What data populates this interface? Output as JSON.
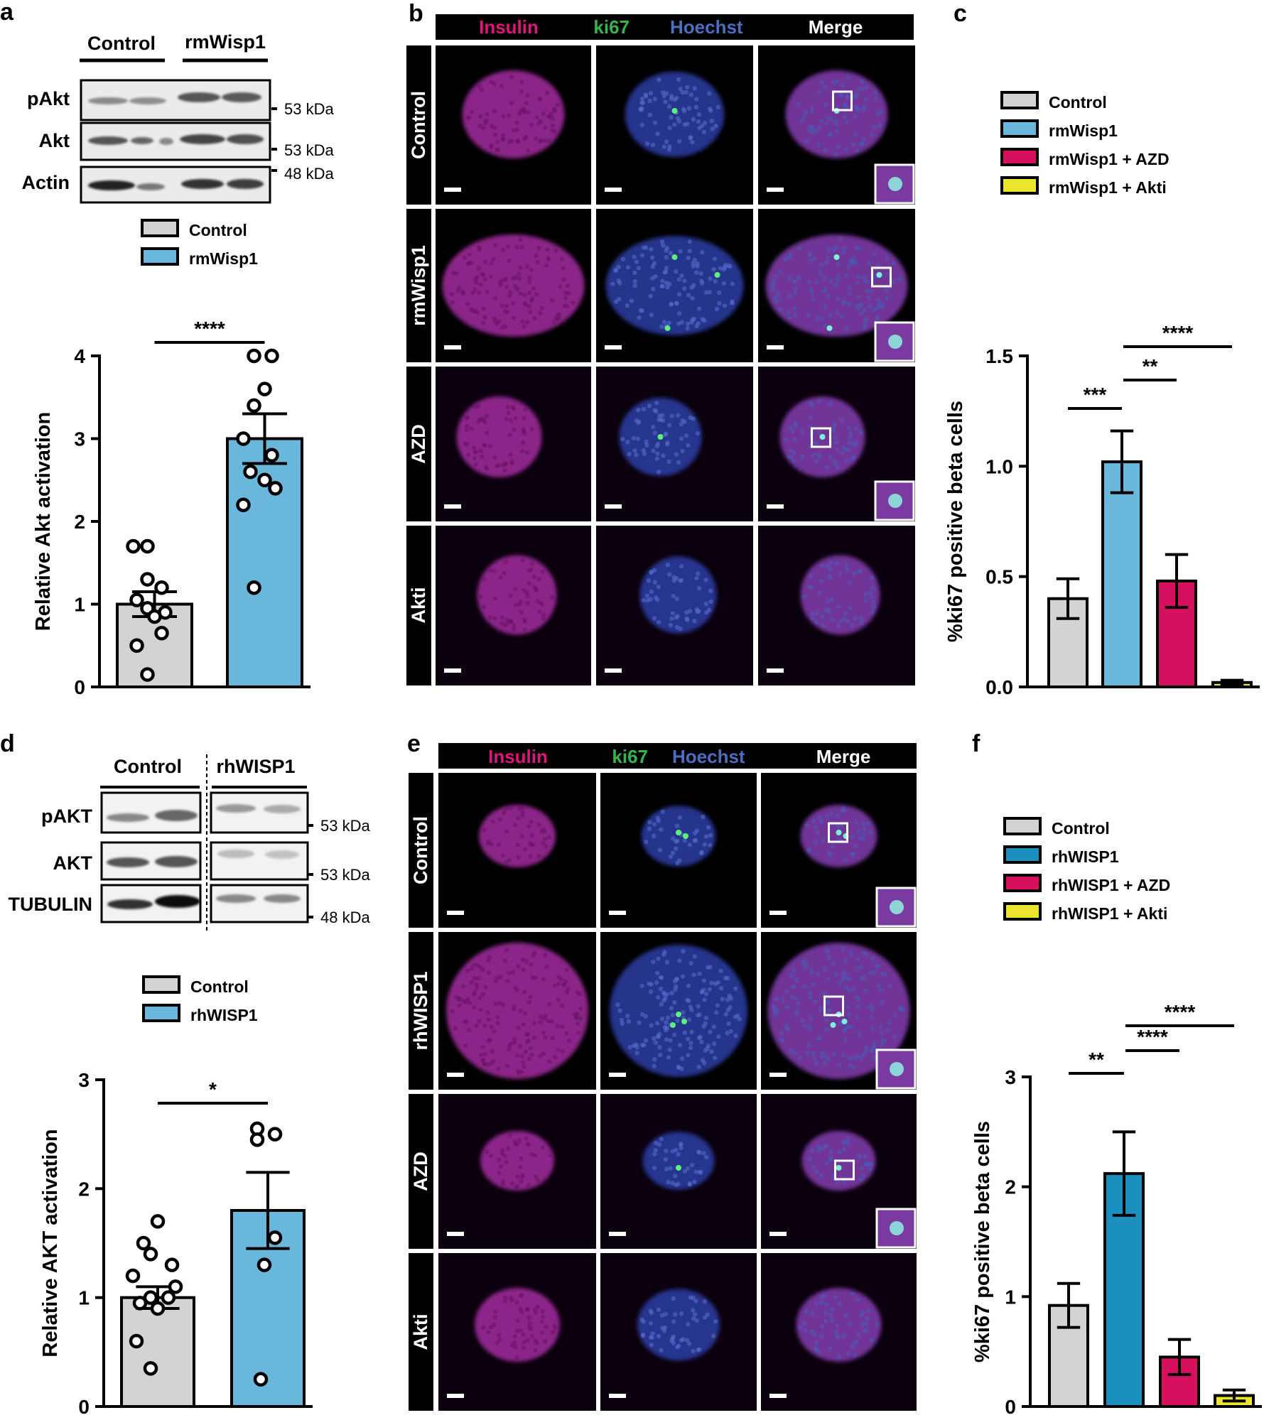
{
  "panels": {
    "a": {
      "letter": "a",
      "blot": {
        "groups": [
          "Control",
          "rmWisp1"
        ],
        "rows": [
          "pAkt",
          "Akt",
          "Actin"
        ],
        "markers": [
          "53 kDa",
          "53 kDa",
          "48 kDa"
        ]
      }
    },
    "b": {
      "letter": "b",
      "channel_header": {
        "insulin": "Insulin",
        "ki67": "ki67",
        "hoechst": "Hoechst",
        "merge": "Merge"
      },
      "rows": [
        "Control",
        "rmWisp1",
        "AZD",
        "Akti"
      ]
    },
    "c": {
      "letter": "c"
    },
    "d": {
      "letter": "d",
      "blot": {
        "groups": [
          "Control",
          "rhWISP1"
        ],
        "rows": [
          "pAKT",
          "AKT",
          "TUBULIN"
        ],
        "markers": [
          "53 kDa",
          "53 kDa",
          "48 kDa"
        ]
      }
    },
    "e": {
      "letter": "e",
      "channel_header": {
        "insulin": "Insulin",
        "ki67": "ki67",
        "hoechst": "Hoechst",
        "merge": "Merge"
      },
      "rows": [
        "Control",
        "rhWISP1",
        "AZD",
        "Akti"
      ]
    },
    "f": {
      "letter": "f"
    }
  },
  "colors": {
    "control": "#d3d3d3",
    "rmwisp1": "#6ab7dc",
    "rhwisp1": "#1b8fbd",
    "azd": "#d70f5f",
    "akti": "#ece52f",
    "insulin_text": "#e0147f",
    "ki67_text": "#38b54a",
    "hoechst_text": "#4c6ec0"
  },
  "chart_data": [
    {
      "panel": "a",
      "type": "bar",
      "categories": [
        "Control",
        "rmWisp1"
      ],
      "values": [
        1.0,
        3.0
      ],
      "errors": [
        0.15,
        0.3
      ],
      "points": [
        [
          1.7,
          1.7,
          1.3,
          1.2,
          1.05,
          0.95,
          0.9,
          0.85,
          0.65,
          0.5,
          0.15
        ],
        [
          4.0,
          4.0,
          3.6,
          3.4,
          3.0,
          2.8,
          2.6,
          2.5,
          2.4,
          2.2,
          1.2
        ]
      ],
      "legend": [
        "Control",
        "rmWisp1"
      ],
      "ylabel": "Relative Akt activation",
      "ylim": [
        0,
        4
      ],
      "yticks": [
        "0",
        "1",
        "2",
        "3",
        "4"
      ],
      "significance": [
        {
          "from": 0,
          "to": 1,
          "label": "****"
        }
      ]
    },
    {
      "panel": "c",
      "type": "bar",
      "categories": [
        "Control",
        "rmWisp1",
        "rmWisp1 + AZD",
        "rmWisp1 + Akti"
      ],
      "values": [
        0.4,
        1.02,
        0.48,
        0.02
      ],
      "errors": [
        0.09,
        0.14,
        0.12,
        0.01
      ],
      "legend": [
        "Control",
        "rmWisp1",
        "rmWisp1 + AZD",
        "rmWisp1 + Akti"
      ],
      "ylabel": "%ki67 positive beta cells",
      "ylim": [
        0,
        1.5
      ],
      "yticks": [
        "0.0",
        "0.5",
        "1.0",
        "1.5"
      ],
      "significance": [
        {
          "from": 0,
          "to": 1,
          "label": "***"
        },
        {
          "from": 1,
          "to": 2,
          "label": "**"
        },
        {
          "from": 1,
          "to": 3,
          "label": "****"
        }
      ]
    },
    {
      "panel": "d",
      "type": "bar",
      "categories": [
        "Control",
        "rhWISP1"
      ],
      "values": [
        1.0,
        1.8
      ],
      "errors": [
        0.1,
        0.35
      ],
      "points": [
        [
          1.7,
          1.5,
          1.4,
          1.3,
          1.2,
          1.1,
          1.0,
          1.0,
          0.95,
          0.9,
          0.6,
          0.35
        ],
        [
          2.55,
          2.5,
          2.45,
          1.55,
          1.3,
          0.25
        ]
      ],
      "legend": [
        "Control",
        "rhWISP1"
      ],
      "ylabel": "Relative AKT activation",
      "ylim": [
        0,
        3
      ],
      "yticks": [
        "0",
        "1",
        "2",
        "3"
      ],
      "significance": [
        {
          "from": 0,
          "to": 1,
          "label": "*"
        }
      ]
    },
    {
      "panel": "f",
      "type": "bar",
      "categories": [
        "Control",
        "rhWISP1",
        "rhWISP1 + AZD",
        "rhWISP1 + Akti"
      ],
      "values": [
        0.92,
        2.12,
        0.45,
        0.1
      ],
      "errors": [
        0.2,
        0.38,
        0.16,
        0.05
      ],
      "legend": [
        "Control",
        "rhWISP1",
        "rhWISP1 + AZD",
        "rhWISP1 + Akti"
      ],
      "ylabel": "%ki67 positive beta cells",
      "ylim": [
        0,
        3
      ],
      "yticks": [
        "0",
        "1",
        "2",
        "3"
      ],
      "significance": [
        {
          "from": 0,
          "to": 1,
          "label": "**"
        },
        {
          "from": 1,
          "to": 2,
          "label": "****"
        },
        {
          "from": 1,
          "to": 3,
          "label": "****"
        }
      ]
    }
  ]
}
